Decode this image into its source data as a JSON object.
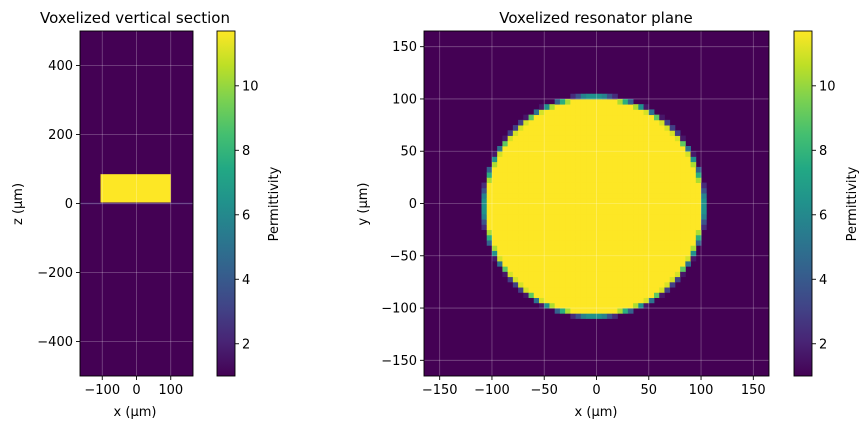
{
  "chart_data": [
    {
      "type": "heatmap",
      "title": "Voxelized vertical section",
      "xlabel": "x (µm)",
      "ylabel": "z (µm)",
      "xlim": [
        -165,
        165
      ],
      "ylim": [
        -500,
        500
      ],
      "xticks": [
        {
          "v": -100,
          "t": "−100"
        },
        {
          "v": 0,
          "t": "0"
        },
        {
          "v": 100,
          "t": "100"
        }
      ],
      "yticks": [
        {
          "v": -400,
          "t": "−400"
        },
        {
          "v": -200,
          "t": "−200"
        },
        {
          "v": 0,
          "t": "0"
        },
        {
          "v": 200,
          "t": "200"
        },
        {
          "v": 400,
          "t": "400"
        }
      ],
      "grid": true,
      "background_value": 1.0,
      "regions": [
        {
          "shape": "rect",
          "x": [
            -105,
            100
          ],
          "y": [
            0,
            85
          ],
          "value": 11.7
        },
        {
          "shape": "rect",
          "x": [
            -165,
            165
          ],
          "y": [
            -3,
            3
          ],
          "value": 1.6
        }
      ],
      "colorbar": {
        "label": "Permittivity",
        "min": 1.0,
        "max": 11.7,
        "ticks": [
          {
            "v": 2,
            "t": "2"
          },
          {
            "v": 4,
            "t": "4"
          },
          {
            "v": 6,
            "t": "6"
          },
          {
            "v": 8,
            "t": "8"
          },
          {
            "v": 10,
            "t": "10"
          }
        ],
        "colormap": "viridis"
      }
    },
    {
      "type": "heatmap",
      "title": "Voxelized resonator plane",
      "xlabel": "x (µm)",
      "ylabel": "y (µm)",
      "xlim": [
        -165,
        165
      ],
      "ylim": [
        -165,
        165
      ],
      "xticks": [
        {
          "v": -150,
          "t": "−150"
        },
        {
          "v": -100,
          "t": "−100"
        },
        {
          "v": -50,
          "t": "−50"
        },
        {
          "v": 0,
          "t": "0"
        },
        {
          "v": 50,
          "t": "50"
        },
        {
          "v": 100,
          "t": "100"
        },
        {
          "v": 150,
          "t": "150"
        }
      ],
      "yticks": [
        {
          "v": -150,
          "t": "−150"
        },
        {
          "v": -100,
          "t": "−100"
        },
        {
          "v": -50,
          "t": "−50"
        },
        {
          "v": 0,
          "t": "0"
        },
        {
          "v": 50,
          "t": "50"
        },
        {
          "v": 100,
          "t": "100"
        },
        {
          "v": 150,
          "t": "150"
        }
      ],
      "grid": true,
      "background_value": 1.0,
      "voxel_size": 5,
      "regions": [
        {
          "shape": "disk",
          "center": [
            -2.5,
            -2.5
          ],
          "radius": 105,
          "value": 11.7
        }
      ],
      "colorbar": {
        "label": "Permittivity",
        "min": 1.0,
        "max": 11.7,
        "ticks": [
          {
            "v": 2,
            "t": "2"
          },
          {
            "v": 4,
            "t": "4"
          },
          {
            "v": 6,
            "t": "6"
          },
          {
            "v": 8,
            "t": "8"
          },
          {
            "v": 10,
            "t": "10"
          }
        ],
        "colormap": "viridis"
      }
    }
  ]
}
